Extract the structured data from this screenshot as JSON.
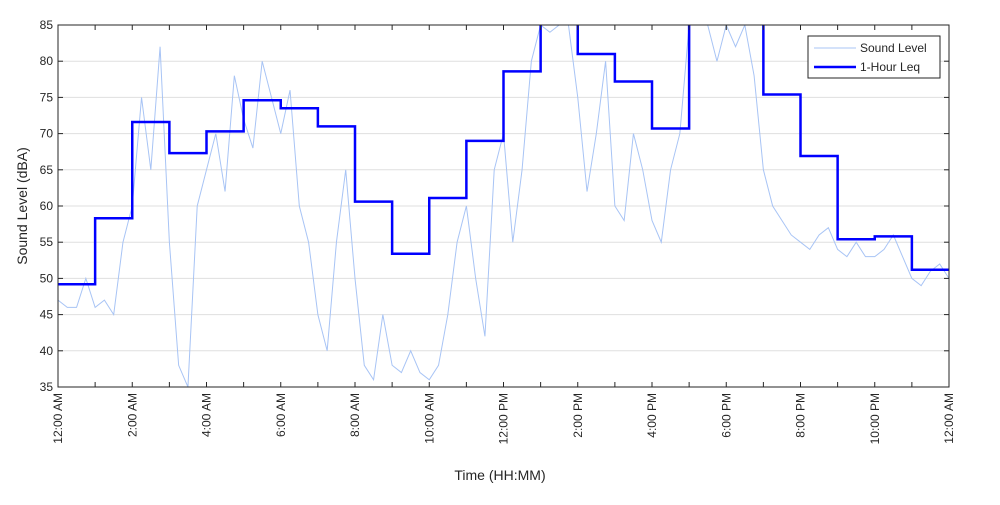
{
  "chart_data": {
    "type": "line",
    "title": "",
    "xlabel": "Time (HH:MM)",
    "ylabel": "Sound Level (dBA)",
    "xlim_hours": [
      0,
      24
    ],
    "ylim": [
      35,
      85
    ],
    "grid": true,
    "legend_position": "top-right",
    "yticks": [
      35,
      40,
      45,
      50,
      55,
      60,
      65,
      70,
      75,
      80,
      85
    ],
    "xtick_labels": [
      "12:00 AM",
      "2:00 AM",
      "4:00 AM",
      "6:00 AM",
      "8:00 AM",
      "10:00 AM",
      "12:00 PM",
      "2:00 PM",
      "4:00 PM",
      "6:00 PM",
      "8:00 PM",
      "10:00 PM",
      "12:00 AM"
    ],
    "series": [
      {
        "name": "Sound Level",
        "color": "#a8c4f5",
        "sample_interval_minutes": 15,
        "values": [
          47,
          46,
          46,
          50,
          46,
          47,
          45,
          55,
          60,
          75,
          65,
          82,
          55,
          38,
          35,
          60,
          65,
          70,
          62,
          78,
          72,
          68,
          80,
          75,
          70,
          76,
          60,
          55,
          45,
          40,
          55,
          65,
          50,
          38,
          36,
          45,
          38,
          37,
          40,
          37,
          36,
          38,
          45,
          55,
          60,
          50,
          42,
          65,
          70,
          55,
          65,
          80,
          85,
          84,
          85,
          85,
          75,
          62,
          70,
          80,
          60,
          58,
          70,
          65,
          58,
          55,
          65,
          70,
          85,
          85,
          85,
          80,
          85,
          82,
          85,
          78,
          65,
          60,
          58,
          56,
          55,
          54,
          56,
          57,
          54,
          53,
          55,
          53,
          53,
          54,
          56,
          53,
          50,
          49,
          51,
          52,
          50
        ]
      },
      {
        "name": "1-Hour Leq",
        "color": "#0000ff",
        "values": [
          49.2,
          58.3,
          71.6,
          67.3,
          70.3,
          74.6,
          73.5,
          71.0,
          60.6,
          53.4,
          61.1,
          69.0,
          78.6,
          87,
          81.0,
          77.2,
          70.7,
          87,
          87,
          75.4,
          66.9,
          55.4,
          55.8,
          51.2
        ]
      }
    ]
  }
}
